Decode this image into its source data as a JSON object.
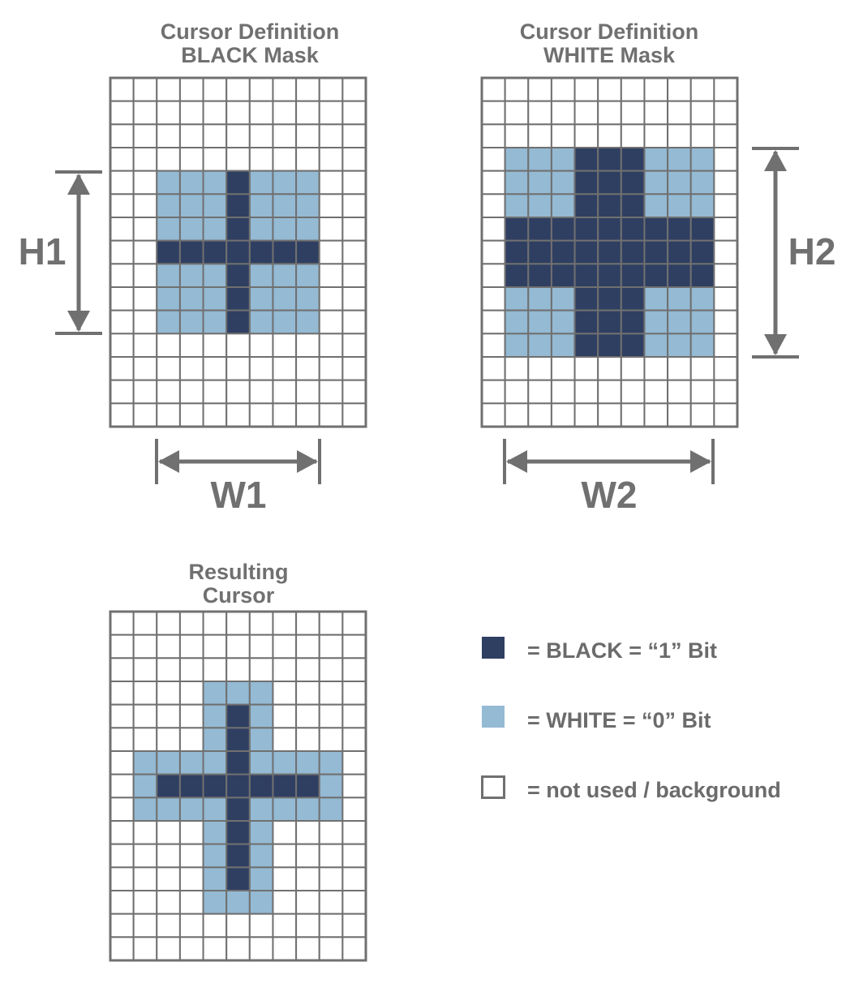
{
  "colors": {
    "black": "#2f3f62",
    "white": "#94bad4",
    "background": "#ffffff",
    "grid_line": "#707070",
    "text": "#707070"
  },
  "grid": {
    "cols": 11,
    "rows": 15
  },
  "panels": {
    "black_mask": {
      "title_line1": "Cursor Definition",
      "title_line2": "BLACK Mask",
      "width_label": "W1",
      "height_label": "H1",
      "rows": [
        "...........",
        "...........",
        "...........",
        "...........",
        "..WWWBWWW..",
        "..WWWBWWW..",
        "..WWWBWWW..",
        "..BBBBBBB..",
        "..WWWBWWW..",
        "..WWWBWWW..",
        "..WWWBWWW..",
        "...........",
        "...........",
        "...........",
        "..........."
      ]
    },
    "white_mask": {
      "title_line1": "Cursor Definition",
      "title_line2": "WHITE Mask",
      "width_label": "W2",
      "height_label": "H2",
      "rows": [
        "...........",
        "...........",
        "...........",
        ".WWWBBBWWW.",
        ".WWWBBBWWW.",
        ".WWWBBBWWW.",
        ".BBBBBBBBB.",
        ".BBBBBBBBB.",
        ".BBBBBBBBB.",
        ".WWWBBBWWW.",
        ".WWWBBBWWW.",
        ".WWWBBBWWW.",
        "...........",
        "...........",
        "..........."
      ]
    },
    "result": {
      "title_line1": "Resulting",
      "title_line2": "Cursor",
      "rows": [
        "...........",
        "...........",
        "...........",
        "....WWW....",
        "....WBW....",
        "....WBW....",
        ".WWWWBWWWW.",
        ".WBBBBBBBW.",
        ".WWWWBWWWW.",
        "....WBW....",
        "....WBW....",
        "....WBW....",
        "....WWW....",
        "...........",
        "..........."
      ]
    }
  },
  "legend": {
    "black_label": "= BLACK = “1” Bit",
    "white_label": "= WHITE = “0” Bit",
    "empty_label": "= not used / background"
  }
}
